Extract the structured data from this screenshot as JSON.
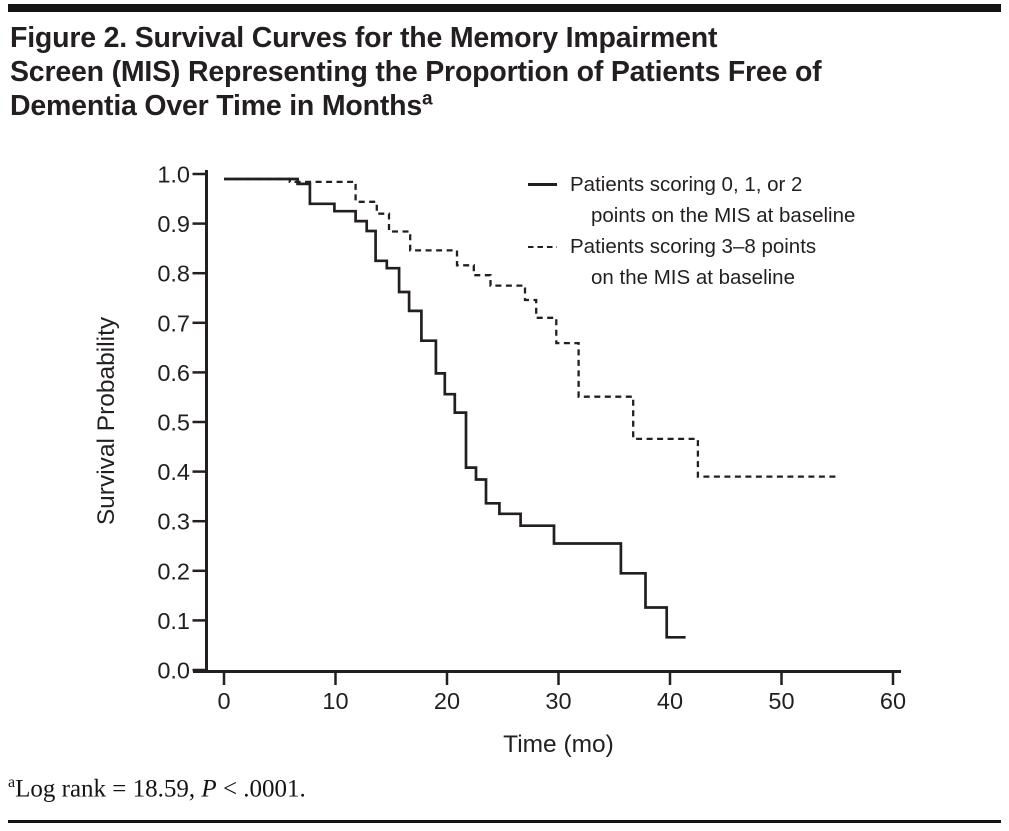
{
  "figure": {
    "title_lines": [
      "Figure 2. Survival Curves for the Memory Impairment",
      "Screen (MIS) Representing the Proportion of Patients Free of",
      "Dementia Over Time in Months"
    ],
    "title_superscript": "a",
    "footnote": {
      "superscript": "a",
      "lead": "Log rank = 18.59, ",
      "stat_symbol": "P",
      "tail": " < .0001."
    }
  },
  "chart_data": {
    "type": "line",
    "subtype": "kaplan-meier-step",
    "title": "",
    "xlabel": "Time (mo)",
    "ylabel": "Survival Probability",
    "xlim": [
      0,
      60
    ],
    "ylim": [
      0.0,
      1.0
    ],
    "grid": false,
    "legend_position": "top-right",
    "x_ticks": [
      0,
      10,
      20,
      30,
      40,
      50,
      60
    ],
    "y_tick_labels": [
      "1.0",
      "0.9",
      "0.8",
      "0.7",
      "0.6",
      "0.5",
      "0.4",
      "0.3",
      "0.2",
      "0.1",
      "0.0"
    ],
    "legend": [
      {
        "style": "solid",
        "lines": [
          "Patients scoring 0, 1, or 2",
          "points on the MIS at baseline"
        ]
      },
      {
        "style": "dashed",
        "lines": [
          "Patients scoring 3–8 points",
          "on the MIS at baseline"
        ]
      }
    ],
    "series": [
      {
        "name": "Patients scoring 0, 1, or 2 points on the MIS at baseline",
        "style": "solid",
        "end_time": 41.4,
        "points": [
          [
            0,
            0.99
          ],
          [
            6.6,
            0.98
          ],
          [
            7.7,
            0.94
          ],
          [
            9.9,
            0.925
          ],
          [
            11.8,
            0.905
          ],
          [
            12.8,
            0.885
          ],
          [
            13.6,
            0.825
          ],
          [
            14.6,
            0.81
          ],
          [
            15.7,
            0.762
          ],
          [
            16.6,
            0.724
          ],
          [
            17.7,
            0.664
          ],
          [
            19.0,
            0.598
          ],
          [
            19.8,
            0.556
          ],
          [
            20.7,
            0.519
          ],
          [
            21.7,
            0.408
          ],
          [
            22.6,
            0.384
          ],
          [
            23.5,
            0.336
          ],
          [
            24.7,
            0.315
          ],
          [
            26.6,
            0.291
          ],
          [
            29.6,
            0.255
          ],
          [
            35.6,
            0.195
          ],
          [
            37.8,
            0.126
          ],
          [
            39.7,
            0.066
          ]
        ]
      },
      {
        "name": "Patients scoring 3–8 points on the MIS at baseline",
        "style": "dashed",
        "end_time": 55.1,
        "points": [
          [
            0,
            0.99
          ],
          [
            5.9,
            0.984
          ],
          [
            11.8,
            0.944
          ],
          [
            13.7,
            0.92
          ],
          [
            14.8,
            0.884
          ],
          [
            16.7,
            0.846
          ],
          [
            20.9,
            0.816
          ],
          [
            22.4,
            0.796
          ],
          [
            23.9,
            0.775
          ],
          [
            27.0,
            0.746
          ],
          [
            28.0,
            0.71
          ],
          [
            29.8,
            0.659
          ],
          [
            31.8,
            0.551
          ],
          [
            36.7,
            0.466
          ],
          [
            42.5,
            0.39
          ]
        ]
      }
    ]
  }
}
